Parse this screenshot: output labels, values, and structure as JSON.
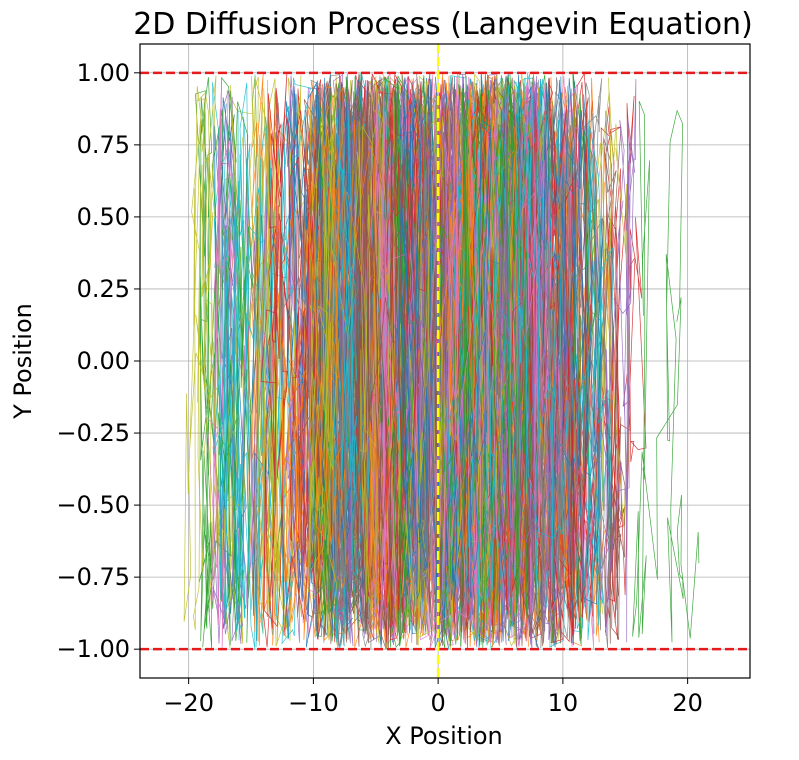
{
  "chart_data": {
    "type": "line",
    "title": "2D Diffusion Process (Langevin Equation)",
    "xlabel": "X Position",
    "ylabel": "Y Position",
    "xlim": [
      -23.9,
      25.0
    ],
    "ylim": [
      -1.1,
      1.1
    ],
    "x_ticks": [
      -20,
      -10,
      0,
      10,
      20
    ],
    "x_tick_labels": [
      "−20",
      "−10",
      "0",
      "10",
      "20"
    ],
    "y_ticks": [
      1.0,
      0.75,
      0.5,
      0.25,
      0.0,
      -0.25,
      -0.5,
      -0.75,
      -1.0
    ],
    "y_tick_labels": [
      "1.00",
      "0.75",
      "0.50",
      "0.25",
      "0.00",
      "−0.25",
      "−0.50",
      "−0.75",
      "−1.00"
    ],
    "grid": true,
    "reference_lines": [
      {
        "orientation": "horizontal",
        "value": 1.0,
        "style": "dashed",
        "color": "#e41a1c"
      },
      {
        "orientation": "horizontal",
        "value": -1.0,
        "style": "dashed",
        "color": "#e41a1c"
      },
      {
        "orientation": "vertical",
        "value": 0,
        "style": "dashed",
        "color": "#ffff00"
      }
    ],
    "trajectory_colors": [
      "#1f77b4",
      "#ff7f0e",
      "#2ca02c",
      "#d62728",
      "#9467bd",
      "#8c564b",
      "#e377c2",
      "#7f7f7f",
      "#bcbd22",
      "#17becf"
    ],
    "trajectory_x_extent": [
      -22,
      22.5
    ],
    "trajectory_y_extent": [
      -1.0,
      1.0
    ]
  }
}
